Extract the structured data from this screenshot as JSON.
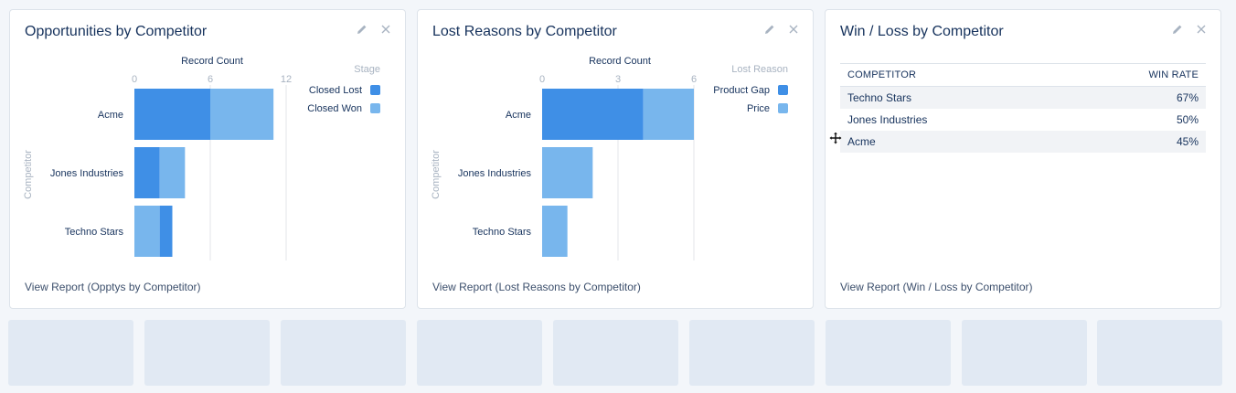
{
  "colors": {
    "closed_lost": "#3f8fe6",
    "closed_won": "#78b6ed",
    "grid": "#e3e6ea",
    "axis_text": "#a8b3c1"
  },
  "cards": {
    "opptys": {
      "title": "Opportunities by Competitor",
      "view_report": "View Report (Opptys by Competitor)",
      "icons": [
        "edit-icon",
        "close-icon"
      ]
    },
    "lost": {
      "title": "Lost Reasons by Competitor",
      "view_report": "View Report (Lost Reasons by Competitor)",
      "icons": [
        "edit-icon",
        "close-icon"
      ]
    },
    "winloss": {
      "title": "Win / Loss by Competitor",
      "view_report": "View Report (Win / Loss by Competitor)",
      "icons": [
        "edit-icon",
        "close-icon"
      ],
      "table": {
        "headers": [
          "COMPETITOR",
          "WIN RATE"
        ],
        "rows": [
          [
            "Techno Stars",
            "67%"
          ],
          [
            "Jones Industries",
            "50%"
          ],
          [
            "Acme",
            "45%"
          ]
        ]
      }
    }
  },
  "chart_data": [
    {
      "type": "bar",
      "orientation": "horizontal",
      "stacked": true,
      "xlabel": "Record Count",
      "ylabel": "Competitor",
      "xlim": [
        0,
        12
      ],
      "xticks": [
        "0",
        "6",
        "12"
      ],
      "categories": [
        "Acme",
        "Jones Industries",
        "Techno Stars"
      ],
      "legend_title": "Stage",
      "legend_position": "right",
      "series": [
        {
          "name": "Closed Lost",
          "values": [
            6,
            2,
            1
          ],
          "color": "#3f8fe6"
        },
        {
          "name": "Closed Won",
          "values": [
            5,
            2,
            2
          ],
          "color": "#78b6ed"
        }
      ],
      "segment_order": [
        [
          "Closed Lost",
          "Closed Won"
        ],
        [
          "Closed Lost",
          "Closed Won"
        ],
        [
          "Closed Won",
          "Closed Lost"
        ]
      ]
    },
    {
      "type": "bar",
      "orientation": "horizontal",
      "stacked": true,
      "xlabel": "Record Count",
      "ylabel": "Competitor",
      "xlim": [
        0,
        6
      ],
      "xticks": [
        "0",
        "3",
        "6"
      ],
      "categories": [
        "Acme",
        "Jones Industries",
        "Techno Stars"
      ],
      "legend_title": "Lost Reason",
      "legend_position": "right",
      "series": [
        {
          "name": "Product Gap",
          "values": [
            4,
            0,
            0
          ],
          "color": "#3f8fe6"
        },
        {
          "name": "Price",
          "values": [
            2,
            2,
            1
          ],
          "color": "#78b6ed"
        }
      ]
    }
  ]
}
